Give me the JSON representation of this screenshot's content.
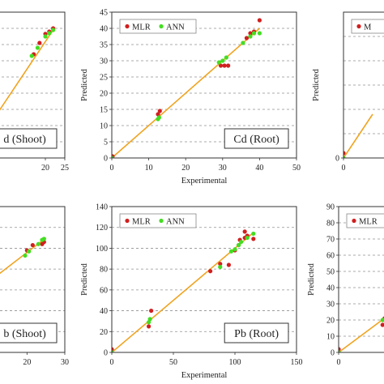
{
  "chart_data": [
    {
      "type": "scatter",
      "panel_label": "d (Shoot)",
      "xlabel": "",
      "ylabel": "",
      "xlim": [
        0,
        25
      ],
      "ylim": [
        0,
        45
      ],
      "x_ticks": [
        20,
        25
      ],
      "y_ticks": [],
      "legend": false,
      "series": [
        {
          "name": "MLR",
          "color": "#d11f1f",
          "points": [
            [
              17,
              32
            ],
            [
              18.5,
              35.5
            ],
            [
              20,
              38.3
            ],
            [
              21,
              39
            ],
            [
              22,
              40
            ]
          ]
        },
        {
          "name": "ANN",
          "color": "#44dd22",
          "points": [
            [
              16.5,
              31.5
            ],
            [
              18,
              34
            ],
            [
              20,
              37.5
            ],
            [
              21,
              38.5
            ],
            [
              22,
              39.5
            ]
          ]
        }
      ],
      "fit_line": [
        [
          0,
          0
        ],
        [
          22,
          39.5
        ]
      ]
    },
    {
      "type": "scatter",
      "panel_label": "Cd (Root)",
      "xlabel": "Experimental",
      "ylabel": "Predicted",
      "xlim": [
        0,
        50
      ],
      "ylim": [
        0,
        45
      ],
      "x_ticks": [
        0,
        10,
        20,
        30,
        40,
        50
      ],
      "y_ticks": [
        0,
        5,
        10,
        15,
        20,
        25,
        30,
        35,
        40,
        45
      ],
      "legend": true,
      "legend_position": "top-left",
      "series": [
        {
          "name": "MLR",
          "color": "#d11f1f",
          "points": [
            [
              0.2,
              0.5
            ],
            [
              12.5,
              13.5
            ],
            [
              13,
              14.5
            ],
            [
              29.5,
              28.5
            ],
            [
              30.5,
              28.5
            ],
            [
              31.5,
              28.5
            ],
            [
              36.5,
              37
            ],
            [
              37.5,
              38.5
            ],
            [
              38.5,
              39
            ],
            [
              40,
              42.5
            ]
          ]
        },
        {
          "name": "ANN",
          "color": "#44dd22",
          "points": [
            [
              0,
              0
            ],
            [
              12.5,
              12
            ],
            [
              12.8,
              12.5
            ],
            [
              29,
              29.5
            ],
            [
              30,
              30
            ],
            [
              31,
              31
            ],
            [
              35.5,
              35.5
            ],
            [
              37.5,
              37.5
            ],
            [
              38.5,
              38.5
            ],
            [
              40,
              38.5
            ]
          ]
        }
      ],
      "fit_line": [
        [
          0,
          0
        ],
        [
          40,
          40
        ]
      ]
    },
    {
      "type": "scatter",
      "panel_label": "",
      "xlabel": "",
      "ylabel": "Predicted",
      "xlim": [
        0,
        30
      ],
      "ylim": [
        0,
        30
      ],
      "x_ticks": [
        0
      ],
      "y_ticks": [
        0
      ],
      "legend": true,
      "legend_position": "top-left",
      "legend_text": "M",
      "series": [
        {
          "name": "MLR",
          "color": "#d11f1f",
          "points": [
            [
              0,
              1
            ]
          ]
        },
        {
          "name": "ANN",
          "color": "#44dd22",
          "points": [
            [
              0,
              0
            ]
          ]
        }
      ],
      "fit_line": [
        [
          0,
          0
        ],
        [
          5,
          9
        ]
      ]
    },
    {
      "type": "scatter",
      "panel_label": "b (Shoot)",
      "xlabel": "",
      "ylabel": "",
      "xlim": [
        0,
        30
      ],
      "ylim": [
        0,
        140
      ],
      "x_ticks": [
        20,
        30
      ],
      "y_ticks": [],
      "legend": false,
      "series": [
        {
          "name": "MLR",
          "color": "#d11f1f",
          "points": [
            [
              20,
              98
            ],
            [
              21.5,
              103
            ],
            [
              24,
              104
            ],
            [
              24.5,
              106
            ]
          ]
        },
        {
          "name": "ANN",
          "color": "#44dd22",
          "points": [
            [
              19.5,
              93
            ],
            [
              20.5,
              97
            ],
            [
              23,
              104
            ],
            [
              24,
              108
            ],
            [
              24.5,
              109
            ]
          ]
        }
      ],
      "fit_line": [
        [
          0,
          40
        ],
        [
          25,
          110
        ]
      ]
    },
    {
      "type": "scatter",
      "panel_label": "Pb (Root)",
      "xlabel": "Experimental",
      "ylabel": "Predicted",
      "xlim": [
        0,
        150
      ],
      "ylim": [
        0,
        140
      ],
      "x_ticks": [
        0,
        50,
        100,
        150
      ],
      "y_ticks": [
        0,
        20,
        40,
        60,
        80,
        100,
        120,
        140
      ],
      "legend": true,
      "legend_position": "top-left",
      "series": [
        {
          "name": "MLR",
          "color": "#d11f1f",
          "points": [
            [
              0,
              3
            ],
            [
              30,
              25
            ],
            [
              32,
              40
            ],
            [
              80,
              78
            ],
            [
              88,
              85
            ],
            [
              95,
              84
            ],
            [
              100,
              98
            ],
            [
              103,
              103
            ],
            [
              104,
              108
            ],
            [
              108,
              110
            ],
            [
              108,
              116
            ],
            [
              110,
              112
            ],
            [
              115,
              109
            ]
          ]
        },
        {
          "name": "ANN",
          "color": "#44dd22",
          "points": [
            [
              0,
              0
            ],
            [
              30,
              29
            ],
            [
              31,
              32
            ],
            [
              88,
              82
            ],
            [
              97,
              97
            ],
            [
              100,
              99
            ],
            [
              103,
              103
            ],
            [
              105,
              106
            ],
            [
              110,
              110
            ],
            [
              115,
              114
            ]
          ]
        }
      ],
      "fit_line": [
        [
          0,
          0
        ],
        [
          115,
          115
        ]
      ]
    },
    {
      "type": "scatter",
      "panel_label": "",
      "xlabel": "",
      "ylabel": "Predicted",
      "xlim": [
        0,
        90
      ],
      "ylim": [
        0,
        90
      ],
      "x_ticks": [
        0
      ],
      "y_ticks": [
        0,
        10,
        20,
        30,
        40,
        50,
        60,
        70,
        80,
        90
      ],
      "legend": true,
      "legend_position": "top-left",
      "legend_text": "MLR",
      "series": [
        {
          "name": "MLR",
          "color": "#d11f1f",
          "points": [
            [
              0,
              2
            ],
            [
              22,
              17
            ],
            [
              23,
              21
            ]
          ]
        },
        {
          "name": "ANN",
          "color": "#44dd22",
          "points": [
            [
              0,
              0
            ],
            [
              22,
              20
            ],
            [
              24,
              22
            ]
          ]
        }
      ],
      "fit_line": [
        [
          0,
          0
        ],
        [
          25,
          23
        ]
      ]
    }
  ],
  "colors": {
    "fit_line": "#f0a420",
    "mlr": "#d11f1f",
    "ann": "#44dd22",
    "grid": "#909090"
  }
}
